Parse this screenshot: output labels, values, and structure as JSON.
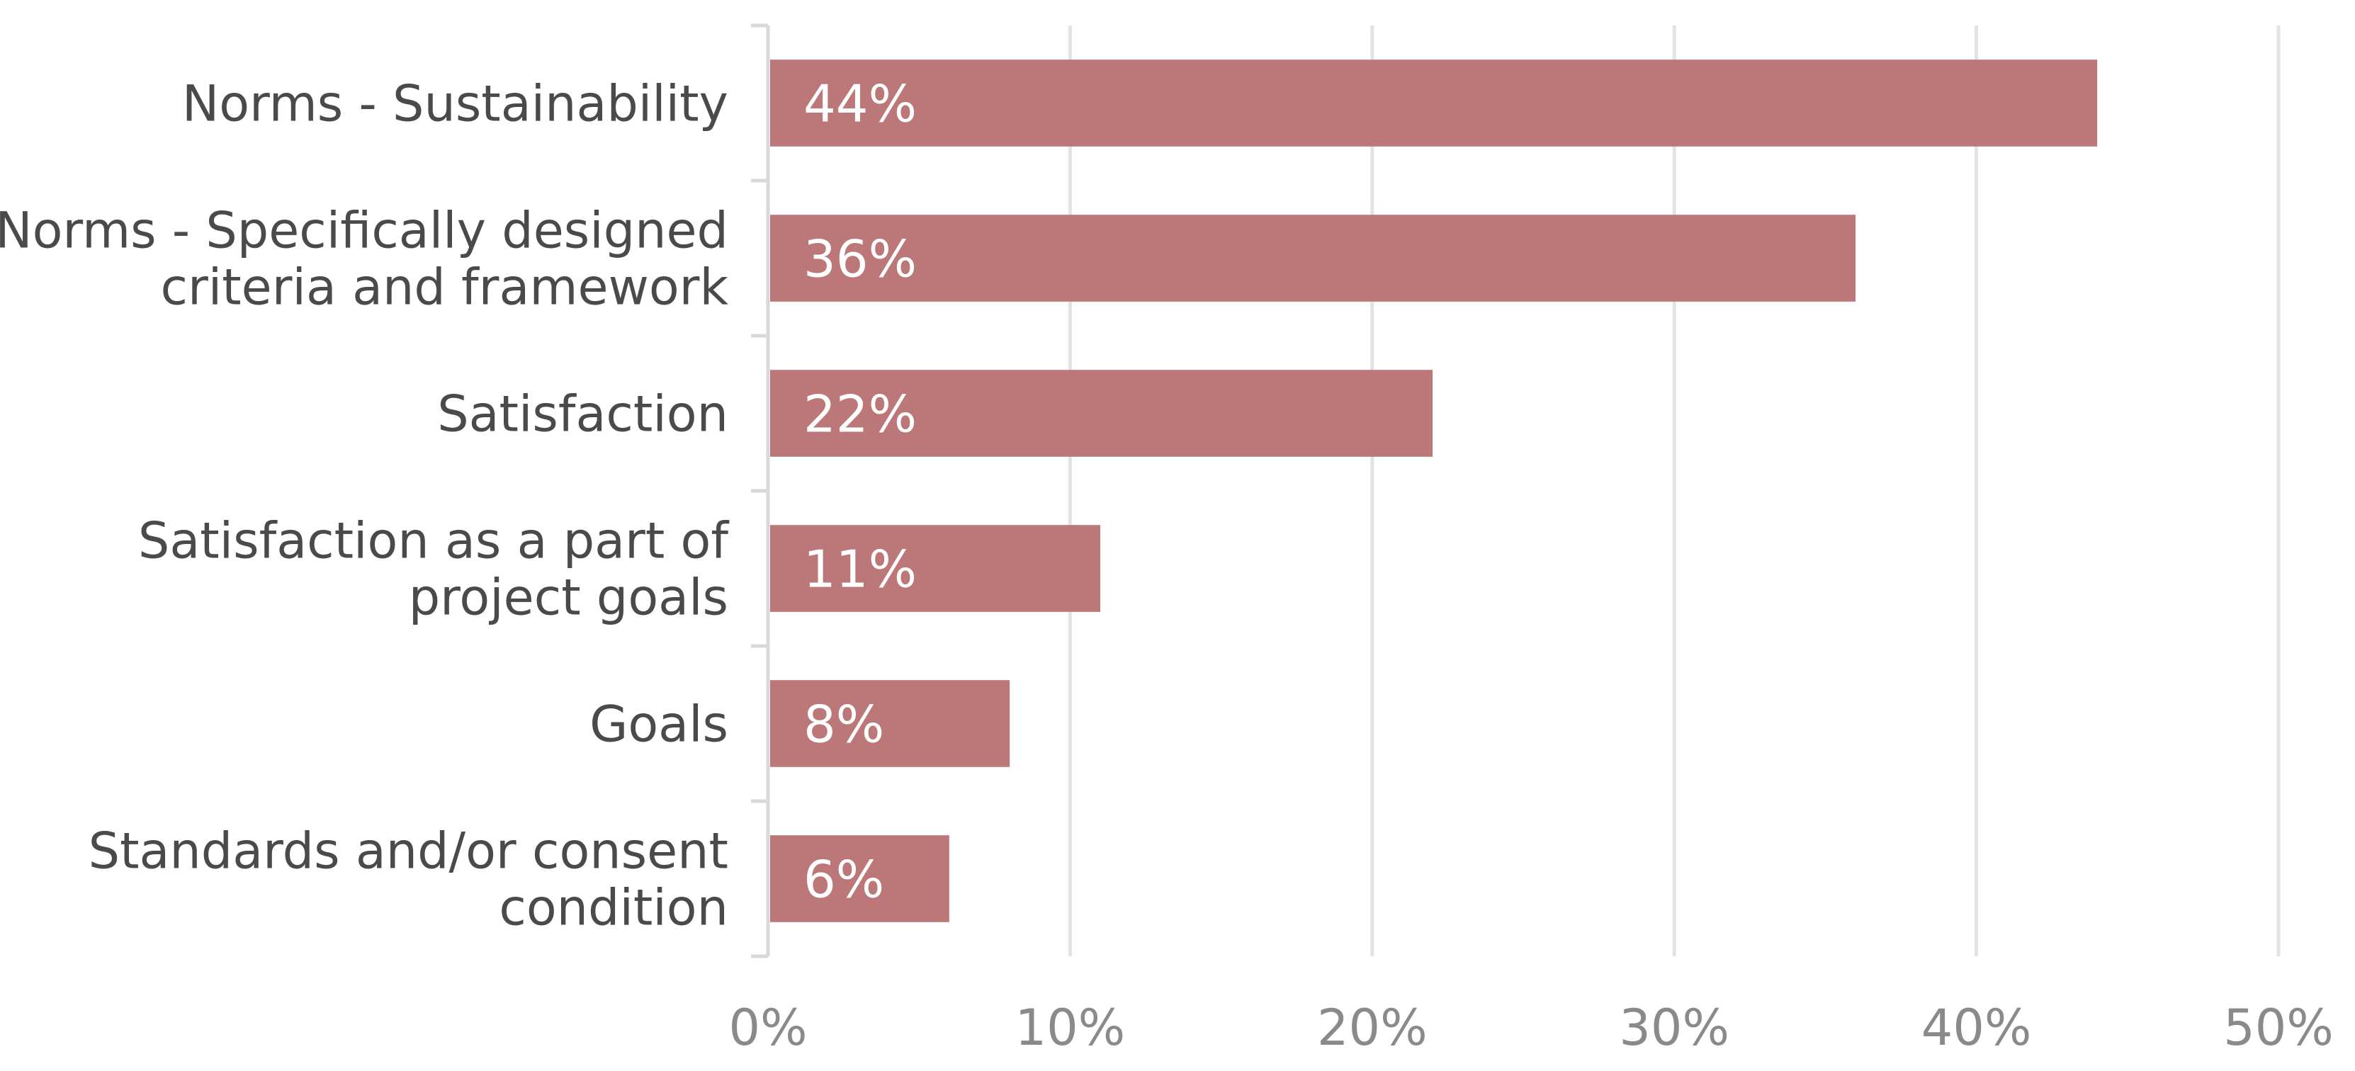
{
  "chart_data": {
    "type": "bar",
    "orientation": "horizontal",
    "title": "",
    "xlabel": "",
    "ylabel": "",
    "xlim": [
      0,
      50
    ],
    "grid": true,
    "colors": {
      "bar": "#bc7878",
      "grid": "#e3e3e3",
      "axis": "#d9d9d9"
    },
    "categories": [
      [
        "Norms - Sustainability"
      ],
      [
        "Norms - Specifically designed",
        "criteria and framework"
      ],
      [
        "Satisfaction"
      ],
      [
        "Satisfaction as a part of",
        "project goals"
      ],
      [
        "Goals"
      ],
      [
        "Standards and/or consent",
        "condition"
      ]
    ],
    "values": [
      44,
      36,
      22,
      11,
      8,
      6
    ],
    "data_labels": [
      "44%",
      "36%",
      "22%",
      "11%",
      "8%",
      "6%"
    ],
    "ticks": [
      0,
      10,
      20,
      30,
      40,
      50
    ],
    "tick_labels": [
      "0%",
      "10%",
      "20%",
      "30%",
      "40%",
      "50%"
    ]
  }
}
